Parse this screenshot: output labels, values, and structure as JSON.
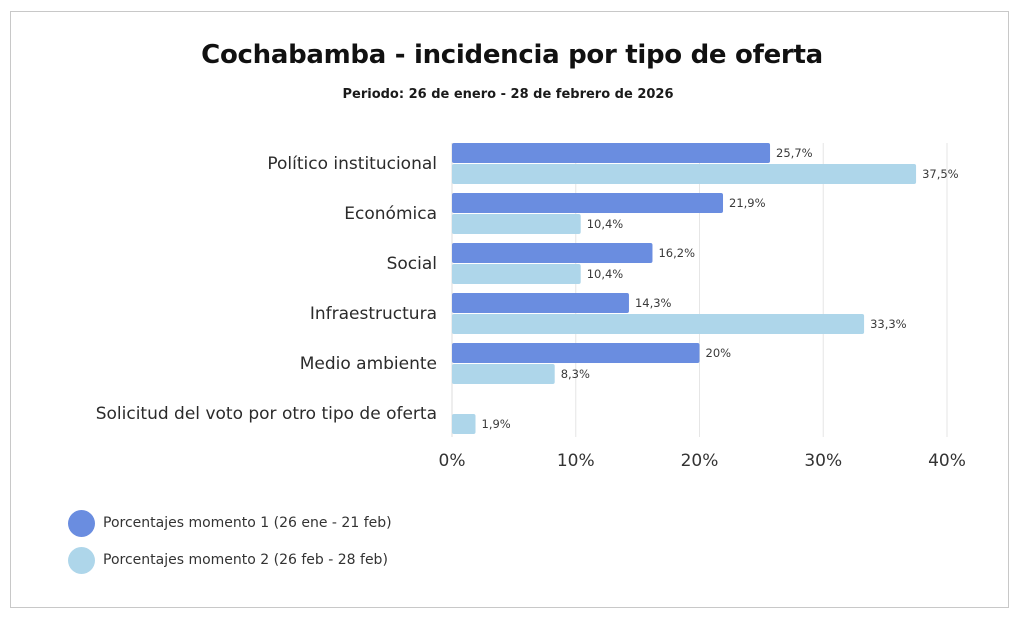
{
  "chart_data": {
    "type": "bar",
    "orientation": "horizontal",
    "title": "Cochabamba - incidencia por tipo de oferta",
    "subtitle": "Periodo: 26 de enero - 28 de febrero de 2026",
    "xlabel": "",
    "ylabel": "",
    "xlim": [
      0,
      40
    ],
    "x_ticks": [
      0,
      10,
      20,
      30,
      40
    ],
    "x_tick_labels": [
      "0%",
      "10%",
      "20%",
      "30%",
      "40%"
    ],
    "grid": "vertical",
    "legend_position": "bottom-left",
    "categories": [
      "Político institucional",
      "Económica",
      "Social",
      "Infraestructura",
      "Medio ambiente",
      "Solicitud del voto por otro tipo de oferta"
    ],
    "series": [
      {
        "name": "Porcentajes momento 1 (26 ene - 21 feb)",
        "color": "#6a8de0",
        "values": [
          25.7,
          21.9,
          16.2,
          14.3,
          20,
          null
        ],
        "labels": [
          "25,7%",
          "21,9%",
          "16,2%",
          "14,3%",
          "20%",
          ""
        ]
      },
      {
        "name": "Porcentajes momento 2 (26 feb - 28 feb)",
        "color": "#aed6ea",
        "values": [
          37.5,
          10.4,
          10.4,
          33.3,
          8.3,
          1.9
        ],
        "labels": [
          "37,5%",
          "10,4%",
          "10,4%",
          "33,3%",
          "8,3%",
          "1,9%"
        ]
      }
    ]
  },
  "legend": {
    "items": [
      {
        "label": "Porcentajes momento 1 (26 ene - 21 feb)",
        "color": "#6a8de0"
      },
      {
        "label": "Porcentajes momento 2 (26 feb - 28 feb)",
        "color": "#aed6ea"
      }
    ]
  },
  "colors": {
    "grid": "#e6e6e6",
    "frame": "#c8c8c8"
  }
}
